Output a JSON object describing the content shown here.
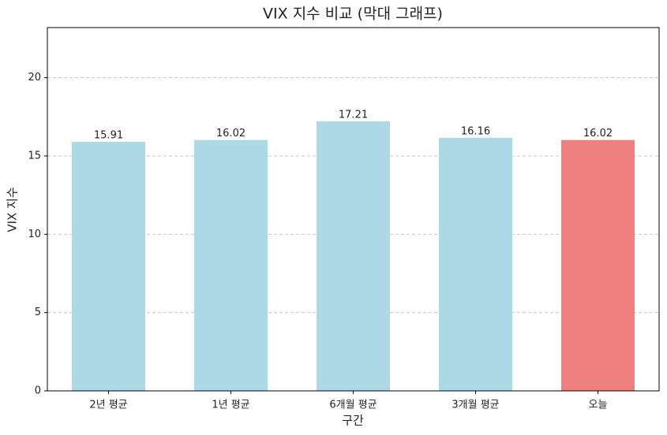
{
  "chart_data": {
    "type": "bar",
    "title": "VIX 지수 비교 (막대 그래프)",
    "x_label": "구간",
    "y_label": "VIX 지수",
    "categories": [
      "2년 평균",
      "1년 평균",
      "6개월 평균",
      "3개월 평균",
      "오늘"
    ],
    "values": [
      15.91,
      16.02,
      17.21,
      16.16,
      16.02
    ],
    "colors": [
      "#add8e6",
      "#add8e6",
      "#add8e6",
      "#add8e6",
      "#f08080"
    ],
    "ylim": [
      0,
      23.2
    ],
    "yticks": [
      0,
      5,
      10,
      15,
      20
    ],
    "grid": true
  }
}
